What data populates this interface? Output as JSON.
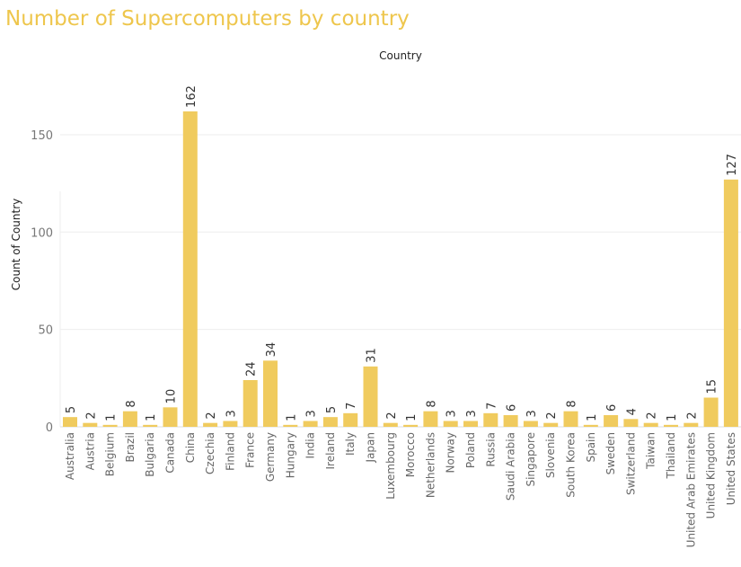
{
  "chart_data": {
    "type": "bar",
    "title": "Number of Supercomputers by country",
    "xlabel": "Country",
    "ylabel": "Count of Country",
    "ylim": [
      0,
      175
    ],
    "yticks": [
      0,
      50,
      100,
      150
    ],
    "grid": true,
    "bar_color": "#f0cb5e",
    "title_color": "#eec64c",
    "categories": [
      "Australia",
      "Austria",
      "Belgium",
      "Brazil",
      "Bulgaria",
      "Canada",
      "China",
      "Czechia",
      "Finland",
      "France",
      "Germany",
      "Hungary",
      "India",
      "Ireland",
      "Italy",
      "Japan",
      "Luxembourg",
      "Morocco",
      "Netherlands",
      "Norway",
      "Poland",
      "Russia",
      "Saudi Arabia",
      "Singapore",
      "Slovenia",
      "South Korea",
      "Spain",
      "Sweden",
      "Switzerland",
      "Taiwan",
      "Thailand",
      "United Arab Emirates",
      "United Kingdom",
      "United States"
    ],
    "values": [
      5,
      2,
      1,
      8,
      1,
      10,
      162,
      2,
      3,
      24,
      34,
      1,
      3,
      5,
      7,
      31,
      2,
      1,
      8,
      3,
      3,
      7,
      6,
      3,
      2,
      8,
      1,
      6,
      4,
      2,
      1,
      2,
      15,
      127
    ]
  }
}
